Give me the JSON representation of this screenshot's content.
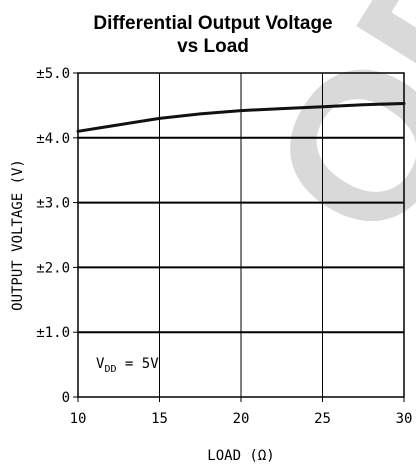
{
  "chart_data": {
    "type": "line",
    "title_line1": "Differential Output Voltage",
    "title_line2": "vs Load",
    "xlabel": "LOAD (Ω)",
    "ylabel": "OUTPUT VOLTAGE (V)",
    "xlim": [
      10,
      30
    ],
    "ylim": [
      0,
      5
    ],
    "x_ticks": [
      10,
      15,
      20,
      25,
      30
    ],
    "x_tick_labels": [
      "10",
      "15",
      "20",
      "25",
      "30"
    ],
    "y_ticks": [
      0,
      1,
      2,
      3,
      4,
      5
    ],
    "y_tick_labels": [
      "0",
      "±1.0",
      "±2.0",
      "±3.0",
      "±4.0",
      "±5.0"
    ],
    "grid": true,
    "series": [
      {
        "x": [
          10,
          12,
          15,
          17.5,
          20,
          22.5,
          25,
          27.5,
          30
        ],
        "y": [
          4.1,
          4.18,
          4.3,
          4.37,
          4.42,
          4.45,
          4.48,
          4.51,
          4.53
        ]
      }
    ],
    "annotation": {
      "prefix": "V",
      "subscript": "DD",
      "suffix": " = 5V"
    },
    "watermark": "OBS",
    "colors": {
      "line": "#111111",
      "grid": "#000000",
      "watermark": "#d9d9d9"
    }
  }
}
